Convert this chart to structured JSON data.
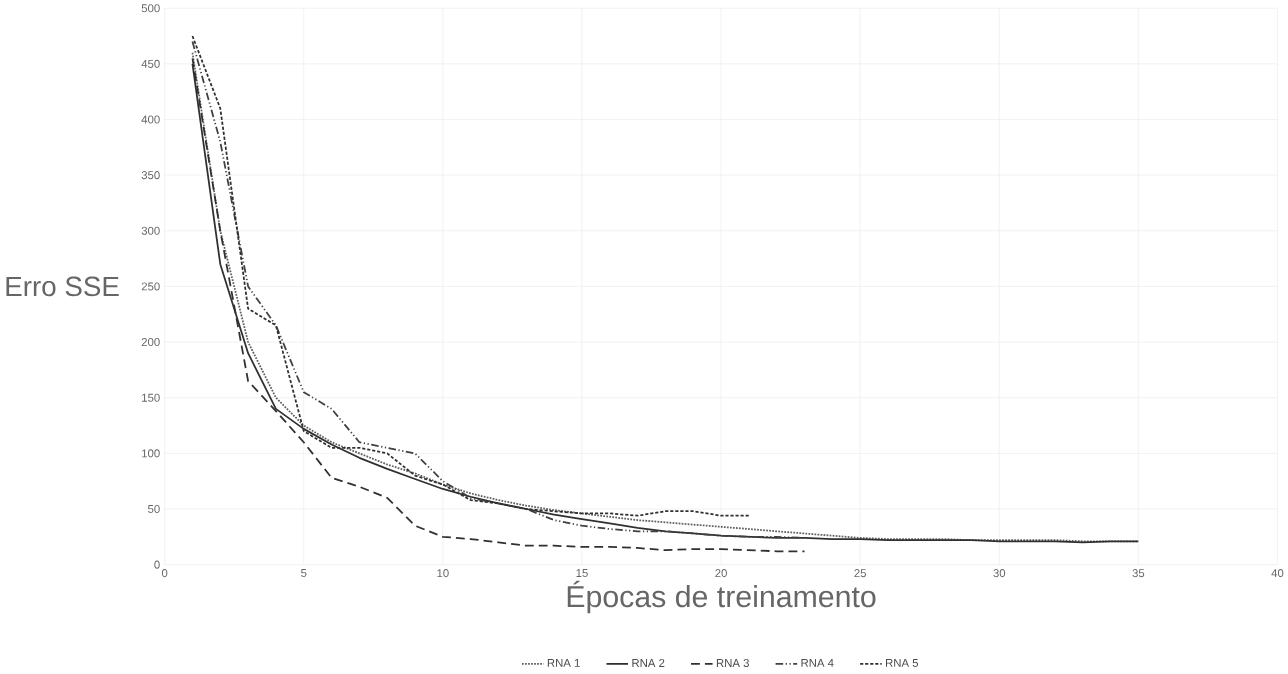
{
  "chart_data": {
    "type": "line",
    "xlabel": "Épocas de treinamento",
    "ylabel": "Erro SSE",
    "xlim": [
      0,
      40
    ],
    "xticks": [
      0,
      5,
      10,
      15,
      20,
      25,
      30,
      35,
      40
    ],
    "ylim": [
      0,
      500
    ],
    "yticks": [
      0,
      50,
      100,
      150,
      200,
      250,
      300,
      350,
      400,
      450,
      500
    ],
    "grid": true,
    "legend": "bottom",
    "series": [
      {
        "name": "RNA 1",
        "color": "#606060",
        "line_style": "dotted",
        "x": [
          1,
          2,
          3,
          4,
          5,
          6,
          7,
          8,
          9,
          10,
          11,
          12,
          13,
          14,
          15,
          16,
          17,
          18,
          19,
          20,
          21,
          22,
          23,
          24,
          25,
          26,
          27,
          28,
          29,
          30,
          31,
          32,
          33,
          34,
          35
        ],
        "values": [
          460,
          300,
          200,
          150,
          125,
          110,
          100,
          90,
          82,
          72,
          64,
          58,
          53,
          49,
          46,
          43,
          40,
          38,
          36,
          34,
          32,
          30,
          28,
          26,
          24,
          23,
          23,
          23,
          22,
          22,
          22,
          22,
          21,
          21,
          21
        ]
      },
      {
        "name": "RNA 2",
        "color": "#303030",
        "line_style": "solid",
        "x": [
          1,
          2,
          3,
          4,
          5,
          6,
          7,
          8,
          9,
          10,
          11,
          12,
          13,
          14,
          15,
          16,
          17,
          18,
          19,
          20,
          21,
          22,
          23,
          24,
          25,
          26,
          27,
          28,
          29,
          30,
          31,
          32,
          33,
          34,
          35
        ],
        "values": [
          450,
          270,
          190,
          140,
          122,
          108,
          96,
          86,
          77,
          68,
          61,
          55,
          50,
          45,
          41,
          37,
          33,
          30,
          28,
          26,
          25,
          24,
          24,
          23,
          23,
          22,
          22,
          22,
          22,
          21,
          21,
          21,
          20,
          21,
          21
        ]
      },
      {
        "name": "RNA 3",
        "color": "#303030",
        "line_style": "dashed",
        "x": [
          1,
          2,
          3,
          4,
          5,
          6,
          7,
          8,
          9,
          10,
          11,
          12,
          13,
          14,
          15,
          16,
          17,
          18,
          19,
          20,
          21,
          22,
          23
        ],
        "values": [
          455,
          300,
          165,
          138,
          110,
          78,
          70,
          60,
          35,
          25,
          23,
          20,
          17,
          17,
          16,
          16,
          15,
          13,
          14,
          14,
          13,
          12,
          12
        ]
      },
      {
        "name": "RNA 4",
        "color": "#404040",
        "line_style": "dashdotdot",
        "x": [
          1,
          2,
          3,
          4,
          5,
          6,
          7,
          8,
          9,
          10,
          11,
          12,
          13,
          14,
          15,
          16,
          17,
          18,
          19,
          20,
          21,
          22,
          23
        ],
        "values": [
          470,
          380,
          250,
          215,
          155,
          140,
          110,
          105,
          100,
          75,
          60,
          55,
          50,
          40,
          35,
          32,
          30,
          30,
          28,
          26,
          25,
          25,
          24
        ]
      },
      {
        "name": "RNA 5",
        "color": "#303030",
        "line_style": "densedash",
        "x": [
          1,
          2,
          3,
          4,
          5,
          6,
          7,
          8,
          9,
          10,
          11,
          12,
          13,
          14,
          15,
          16,
          17,
          18,
          19,
          20,
          21
        ],
        "values": [
          475,
          410,
          230,
          215,
          120,
          105,
          105,
          100,
          80,
          72,
          58,
          55,
          50,
          48,
          46,
          46,
          44,
          48,
          48,
          44,
          44
        ]
      }
    ]
  }
}
